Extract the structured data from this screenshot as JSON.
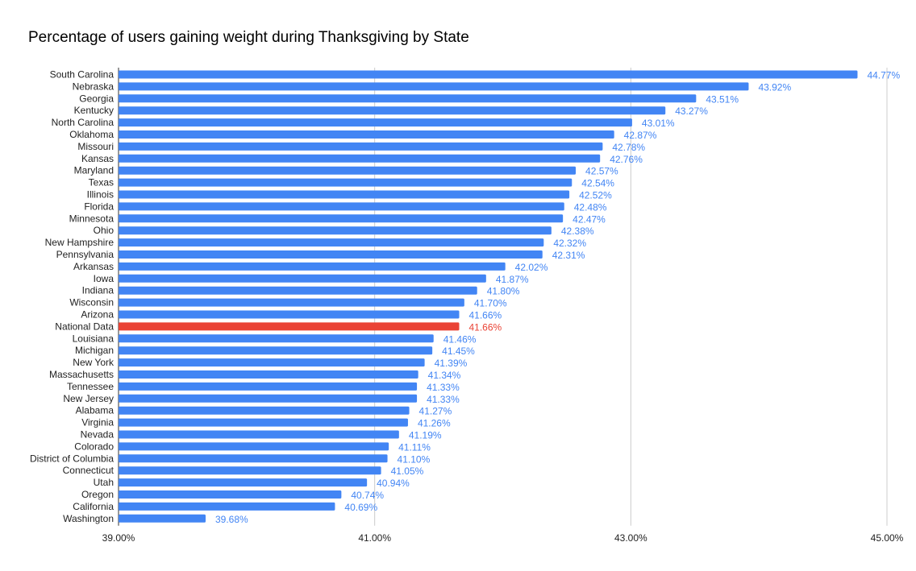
{
  "chart_data": {
    "type": "bar",
    "orientation": "horizontal",
    "title": "Percentage of users gaining weight during Thanksgiving by State",
    "xlabel": "",
    "ylabel": "",
    "xlim": [
      39,
      45
    ],
    "x_ticks": [
      {
        "value": 39,
        "label": "39.00%"
      },
      {
        "value": 41,
        "label": "41.00%"
      },
      {
        "value": 43,
        "label": "43.00%"
      },
      {
        "value": 45,
        "label": "45.00%"
      }
    ],
    "grid": true,
    "legend": "none",
    "bar_color": "#4285f4",
    "highlight_color": "#ea4335",
    "bars": [
      {
        "category": "South Carolina",
        "value": 44.77,
        "label": "44.77%",
        "highlight": false
      },
      {
        "category": "Nebraska",
        "value": 43.92,
        "label": "43.92%",
        "highlight": false
      },
      {
        "category": "Georgia",
        "value": 43.51,
        "label": "43.51%",
        "highlight": false
      },
      {
        "category": "Kentucky",
        "value": 43.27,
        "label": "43.27%",
        "highlight": false
      },
      {
        "category": "North Carolina",
        "value": 43.01,
        "label": "43.01%",
        "highlight": false
      },
      {
        "category": "Oklahoma",
        "value": 42.87,
        "label": "42.87%",
        "highlight": false
      },
      {
        "category": "Missouri",
        "value": 42.78,
        "label": "42.78%",
        "highlight": false
      },
      {
        "category": "Kansas",
        "value": 42.76,
        "label": "42.76%",
        "highlight": false
      },
      {
        "category": "Maryland",
        "value": 42.57,
        "label": "42.57%",
        "highlight": false
      },
      {
        "category": "Texas",
        "value": 42.54,
        "label": "42.54%",
        "highlight": false
      },
      {
        "category": "Illinois",
        "value": 42.52,
        "label": "42.52%",
        "highlight": false
      },
      {
        "category": "Florida",
        "value": 42.48,
        "label": "42.48%",
        "highlight": false
      },
      {
        "category": "Minnesota",
        "value": 42.47,
        "label": "42.47%",
        "highlight": false
      },
      {
        "category": "Ohio",
        "value": 42.38,
        "label": "42.38%",
        "highlight": false
      },
      {
        "category": "New Hampshire",
        "value": 42.32,
        "label": "42.32%",
        "highlight": false
      },
      {
        "category": "Pennsylvania",
        "value": 42.31,
        "label": "42.31%",
        "highlight": false
      },
      {
        "category": "Arkansas",
        "value": 42.02,
        "label": "42.02%",
        "highlight": false
      },
      {
        "category": "Iowa",
        "value": 41.87,
        "label": "41.87%",
        "highlight": false
      },
      {
        "category": "Indiana",
        "value": 41.8,
        "label": "41.80%",
        "highlight": false
      },
      {
        "category": "Wisconsin",
        "value": 41.7,
        "label": "41.70%",
        "highlight": false
      },
      {
        "category": "Arizona",
        "value": 41.66,
        "label": "41.66%",
        "highlight": false
      },
      {
        "category": "National Data",
        "value": 41.66,
        "label": "41.66%",
        "highlight": true
      },
      {
        "category": "Louisiana",
        "value": 41.46,
        "label": "41.46%",
        "highlight": false
      },
      {
        "category": "Michigan",
        "value": 41.45,
        "label": "41.45%",
        "highlight": false
      },
      {
        "category": "New York",
        "value": 41.39,
        "label": "41.39%",
        "highlight": false
      },
      {
        "category": "Massachusetts",
        "value": 41.34,
        "label": "41.34%",
        "highlight": false
      },
      {
        "category": "Tennessee",
        "value": 41.33,
        "label": "41.33%",
        "highlight": false
      },
      {
        "category": "New Jersey",
        "value": 41.33,
        "label": "41.33%",
        "highlight": false
      },
      {
        "category": "Alabama",
        "value": 41.27,
        "label": "41.27%",
        "highlight": false
      },
      {
        "category": "Virginia",
        "value": 41.26,
        "label": "41.26%",
        "highlight": false
      },
      {
        "category": "Nevada",
        "value": 41.19,
        "label": "41.19%",
        "highlight": false
      },
      {
        "category": "Colorado",
        "value": 41.11,
        "label": "41.11%",
        "highlight": false
      },
      {
        "category": "District of Columbia",
        "value": 41.1,
        "label": "41.10%",
        "highlight": false
      },
      {
        "category": "Connecticut",
        "value": 41.05,
        "label": "41.05%",
        "highlight": false
      },
      {
        "category": "Utah",
        "value": 40.94,
        "label": "40.94%",
        "highlight": false
      },
      {
        "category": "Oregon",
        "value": 40.74,
        "label": "40.74%",
        "highlight": false
      },
      {
        "category": "California",
        "value": 40.69,
        "label": "40.69%",
        "highlight": false
      },
      {
        "category": "Washington",
        "value": 39.68,
        "label": "39.68%",
        "highlight": false
      }
    ]
  }
}
